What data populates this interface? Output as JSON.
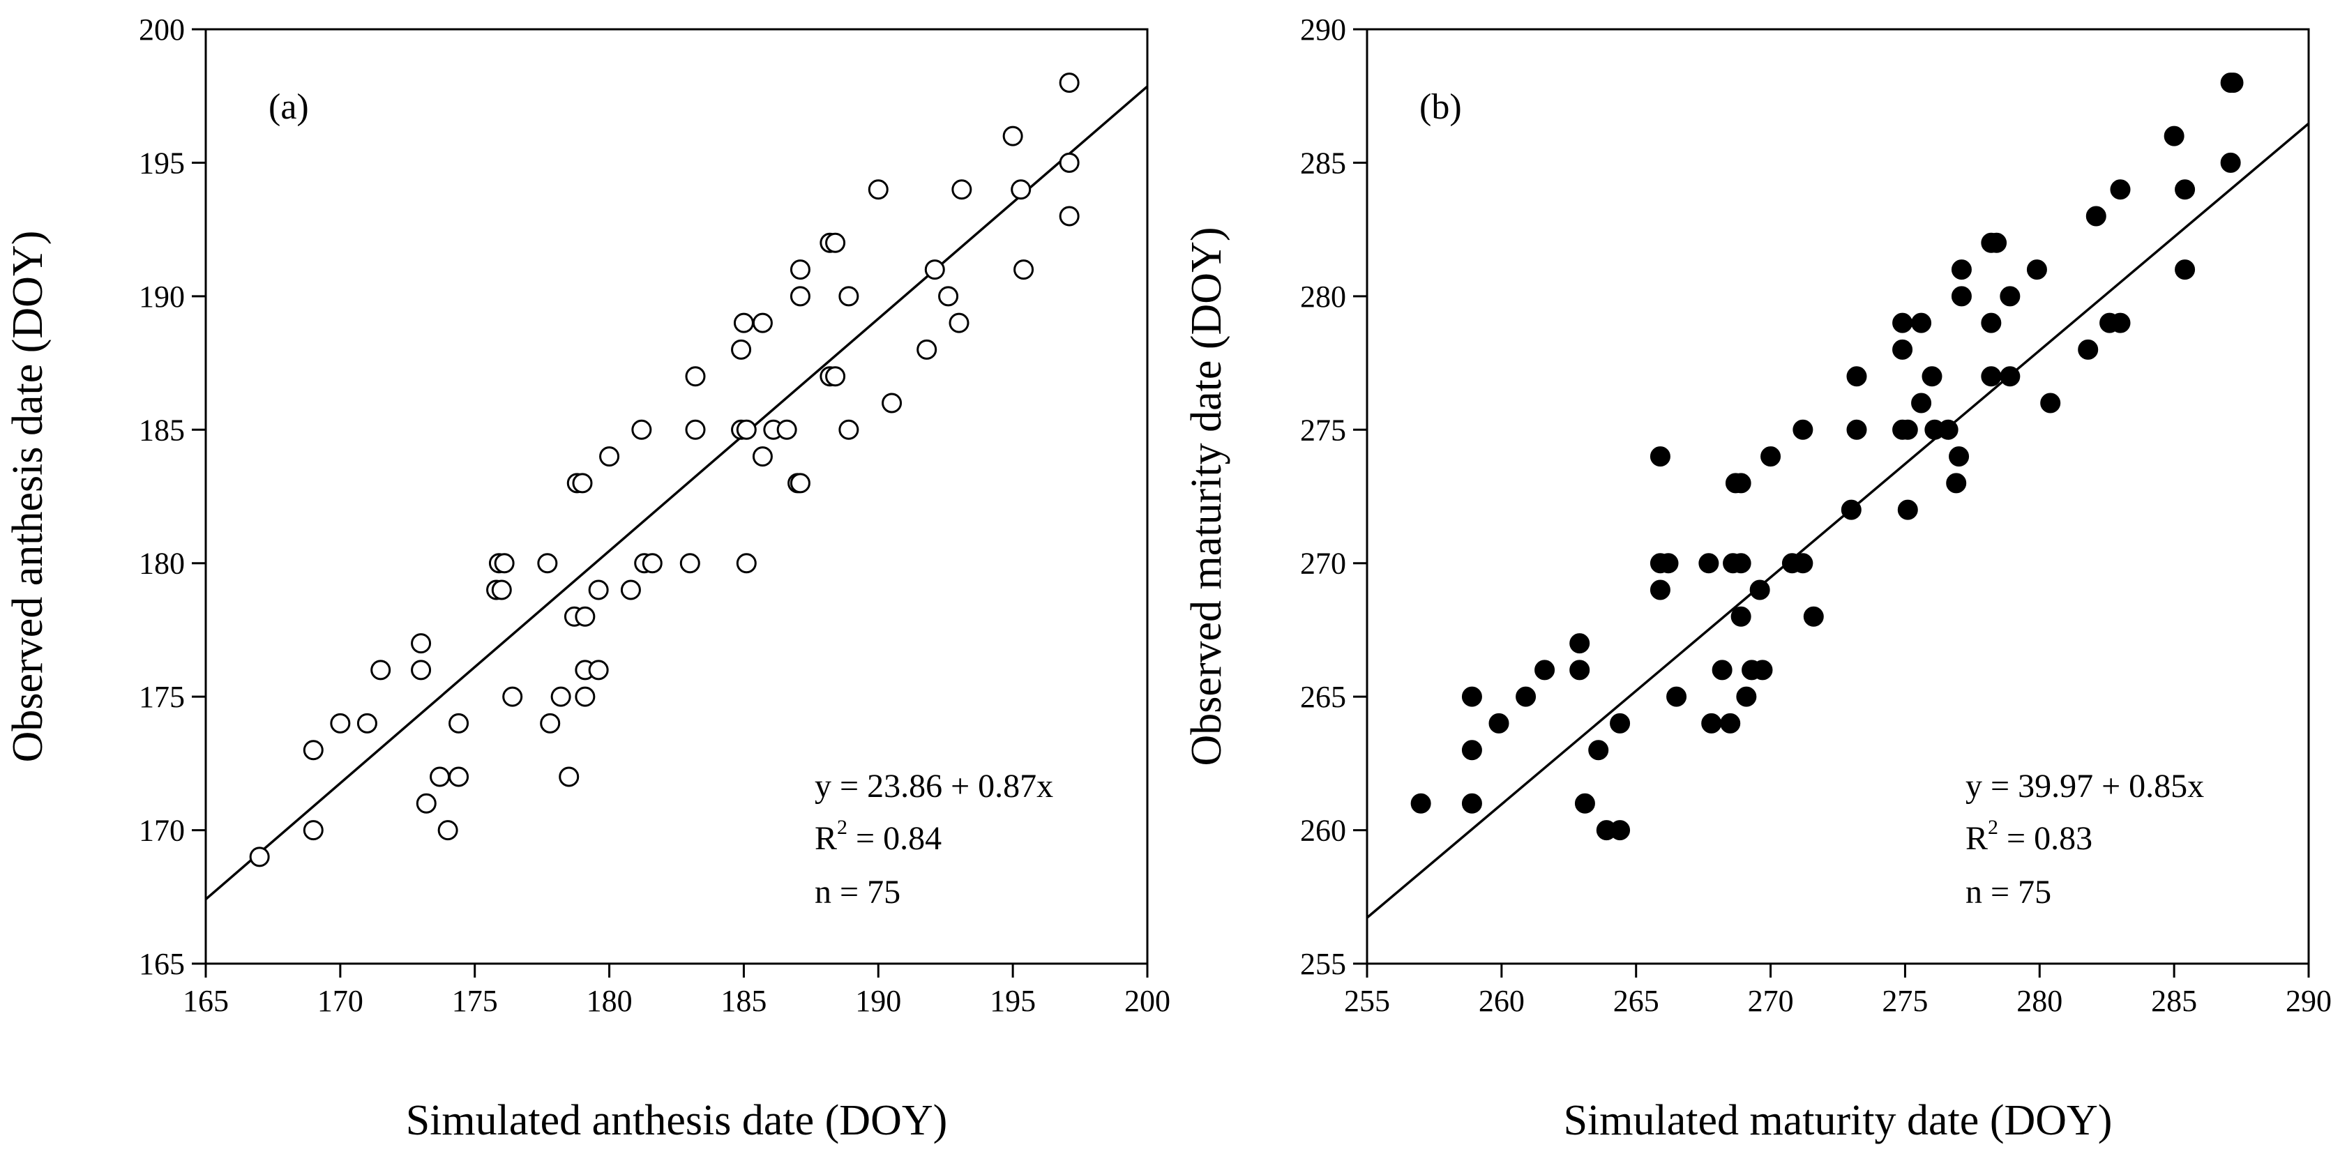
{
  "chart_data": [
    {
      "type": "scatter",
      "panel_label": "(a)",
      "xlabel": "Simulated  anthesis  date (DOY)",
      "ylabel": "Observed  anthesis  date (DOY)",
      "xlim": [
        165,
        200
      ],
      "ylim": [
        165,
        200
      ],
      "x_ticks": [
        165,
        170,
        175,
        180,
        185,
        190,
        195,
        200
      ],
      "y_ticks": [
        165,
        170,
        175,
        180,
        185,
        190,
        195,
        200
      ],
      "marker": "open",
      "regression": {
        "intercept": 23.86,
        "slope": 0.87
      },
      "stats": {
        "equation": "y = 23.86 + 0.87x",
        "r2_prefix": "R",
        "r2_sup": "2",
        "r2_value": " = 0.84",
        "n": "n = 75"
      },
      "legend_position": "bottom-right",
      "points": [
        [
          167.0,
          169.0
        ],
        [
          169.0,
          170.0
        ],
        [
          169.0,
          173.0
        ],
        [
          170.0,
          174.0
        ],
        [
          171.0,
          174.0
        ],
        [
          171.5,
          176.0
        ],
        [
          173.0,
          176.0
        ],
        [
          173.0,
          177.0
        ],
        [
          173.2,
          171.0
        ],
        [
          173.7,
          172.0
        ],
        [
          174.0,
          170.0
        ],
        [
          174.4,
          174.0
        ],
        [
          174.4,
          172.0
        ],
        [
          176.4,
          175.0
        ],
        [
          175.8,
          179.0
        ],
        [
          176.0,
          179.0
        ],
        [
          175.9,
          180.0
        ],
        [
          176.1,
          180.0
        ],
        [
          177.7,
          180.0
        ],
        [
          177.8,
          174.0
        ],
        [
          178.2,
          175.0
        ],
        [
          178.5,
          172.0
        ],
        [
          178.7,
          178.0
        ],
        [
          178.8,
          183.0
        ],
        [
          179.0,
          183.0
        ],
        [
          179.1,
          178.0
        ],
        [
          179.1,
          176.0
        ],
        [
          179.1,
          175.0
        ],
        [
          179.6,
          176.0
        ],
        [
          179.6,
          179.0
        ],
        [
          180.0,
          184.0
        ],
        [
          180.8,
          179.0
        ],
        [
          181.2,
          185.0
        ],
        [
          181.3,
          180.0
        ],
        [
          181.6,
          180.0
        ],
        [
          183.0,
          180.0
        ],
        [
          183.2,
          185.0
        ],
        [
          183.2,
          187.0
        ],
        [
          184.9,
          185.0
        ],
        [
          184.9,
          188.0
        ],
        [
          185.0,
          189.0
        ],
        [
          185.1,
          180.0
        ],
        [
          185.1,
          185.0
        ],
        [
          185.7,
          184.0
        ],
        [
          185.7,
          189.0
        ],
        [
          186.1,
          185.0
        ],
        [
          186.6,
          185.0
        ],
        [
          187.0,
          183.0
        ],
        [
          187.1,
          183.0
        ],
        [
          187.1,
          190.0
        ],
        [
          187.1,
          191.0
        ],
        [
          188.2,
          187.0
        ],
        [
          188.2,
          192.0
        ],
        [
          188.4,
          187.0
        ],
        [
          188.4,
          192.0
        ],
        [
          188.9,
          185.0
        ],
        [
          188.9,
          190.0
        ],
        [
          190.0,
          194.0
        ],
        [
          190.5,
          186.0
        ],
        [
          191.8,
          188.0
        ],
        [
          192.1,
          191.0
        ],
        [
          192.6,
          190.0
        ],
        [
          193.0,
          189.0
        ],
        [
          193.1,
          194.0
        ],
        [
          195.0,
          196.0
        ],
        [
          195.3,
          194.0
        ],
        [
          195.4,
          191.0
        ],
        [
          197.1,
          193.0
        ],
        [
          197.1,
          195.0
        ],
        [
          197.1,
          198.0
        ]
      ]
    },
    {
      "type": "scatter",
      "panel_label": "(b)",
      "xlabel": "Simulated  maturity  date (DOY)",
      "ylabel": "Observed  maturity  date (DOY)",
      "xlim": [
        255,
        290
      ],
      "ylim": [
        255,
        290
      ],
      "x_ticks": [
        255,
        260,
        265,
        270,
        275,
        280,
        285,
        290
      ],
      "y_ticks": [
        255,
        260,
        265,
        270,
        275,
        280,
        285,
        290
      ],
      "marker": "filled",
      "regression": {
        "intercept": 39.97,
        "slope": 0.85
      },
      "stats": {
        "equation": "y = 39.97 + 0.85x",
        "r2_prefix": "R",
        "r2_sup": "2",
        "r2_value": " = 0.83",
        "n": "n = 75"
      },
      "legend_position": "bottom-right",
      "points": [
        [
          257.0,
          261.0
        ],
        [
          258.9,
          261.0
        ],
        [
          258.9,
          263.0
        ],
        [
          258.9,
          265.0
        ],
        [
          259.9,
          264.0
        ],
        [
          260.9,
          265.0
        ],
        [
          261.6,
          266.0
        ],
        [
          262.9,
          266.0
        ],
        [
          262.9,
          267.0
        ],
        [
          263.1,
          261.0
        ],
        [
          263.6,
          263.0
        ],
        [
          263.9,
          260.0
        ],
        [
          264.4,
          260.0
        ],
        [
          264.4,
          264.0
        ],
        [
          265.9,
          269.0
        ],
        [
          265.9,
          274.0
        ],
        [
          265.9,
          270.0
        ],
        [
          266.2,
          270.0
        ],
        [
          266.5,
          265.0
        ],
        [
          267.7,
          270.0
        ],
        [
          267.8,
          264.0
        ],
        [
          268.2,
          266.0
        ],
        [
          268.5,
          264.0
        ],
        [
          268.6,
          270.0
        ],
        [
          268.7,
          273.0
        ],
        [
          268.9,
          273.0
        ],
        [
          268.9,
          268.0
        ],
        [
          268.9,
          270.0
        ],
        [
          269.1,
          265.0
        ],
        [
          269.3,
          266.0
        ],
        [
          269.6,
          269.0
        ],
        [
          269.7,
          266.0
        ],
        [
          270.0,
          274.0
        ],
        [
          270.8,
          270.0
        ],
        [
          271.2,
          270.0
        ],
        [
          271.2,
          275.0
        ],
        [
          271.6,
          268.0
        ],
        [
          273.0,
          272.0
        ],
        [
          273.2,
          275.0
        ],
        [
          273.2,
          277.0
        ],
        [
          274.9,
          279.0
        ],
        [
          274.9,
          278.0
        ],
        [
          274.9,
          275.0
        ],
        [
          275.1,
          275.0
        ],
        [
          275.1,
          272.0
        ],
        [
          275.6,
          276.0
        ],
        [
          275.6,
          279.0
        ],
        [
          276.0,
          277.0
        ],
        [
          276.1,
          275.0
        ],
        [
          276.6,
          275.0
        ],
        [
          276.9,
          273.0
        ],
        [
          277.0,
          274.0
        ],
        [
          277.1,
          280.0
        ],
        [
          277.1,
          281.0
        ],
        [
          278.2,
          279.0
        ],
        [
          278.2,
          277.0
        ],
        [
          278.2,
          282.0
        ],
        [
          278.4,
          282.0
        ],
        [
          278.9,
          277.0
        ],
        [
          278.9,
          280.0
        ],
        [
          279.9,
          281.0
        ],
        [
          280.4,
          276.0
        ],
        [
          281.8,
          278.0
        ],
        [
          282.1,
          283.0
        ],
        [
          282.6,
          279.0
        ],
        [
          283.0,
          279.0
        ],
        [
          283.0,
          284.0
        ],
        [
          285.0,
          286.0
        ],
        [
          285.4,
          281.0
        ],
        [
          285.4,
          284.0
        ],
        [
          287.1,
          285.0
        ],
        [
          287.1,
          288.0
        ],
        [
          287.2,
          288.0
        ]
      ]
    }
  ]
}
